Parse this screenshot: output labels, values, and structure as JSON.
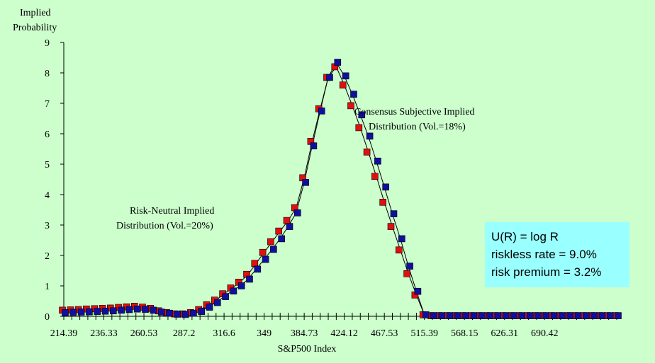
{
  "chart_data": {
    "type": "line",
    "ylabel": [
      "Implied",
      "Probability"
    ],
    "xlabel": "S&P500 Index",
    "ylim": [
      0,
      9
    ],
    "yticks": [
      0,
      1,
      2,
      3,
      4,
      5,
      6,
      7,
      8,
      9
    ],
    "xtick_labels": [
      "214.39",
      "236.33",
      "260.53",
      "287.2",
      "316.6",
      "349",
      "384.73",
      "424.12",
      "467.53",
      "515.39",
      "568.15",
      "626.31",
      "690.42"
    ],
    "xtick_label_index": [
      0,
      5,
      10,
      15,
      20,
      25,
      30,
      35,
      40,
      45,
      50,
      55,
      60
    ],
    "grid": false,
    "annotations": {
      "risk_neutral": [
        "Risk-Neutral Implied",
        "Distribution (Vol.=20%)"
      ],
      "subjective": [
        "Consensus Subjective Implied",
        "Distribution (Vol.=18%)"
      ]
    },
    "info_box": [
      "U(R) = log R",
      "riskless rate = 9.0%",
      "risk premium = 3.2%"
    ],
    "series": [
      {
        "label": "Risk-Neutral Implied Distribution (Vol.=20%)",
        "color": "#e01010",
        "values": [
          0.2,
          0.21,
          0.22,
          0.24,
          0.25,
          0.26,
          0.27,
          0.29,
          0.31,
          0.33,
          0.3,
          0.26,
          0.18,
          0.12,
          0.08,
          0.08,
          0.12,
          0.22,
          0.38,
          0.53,
          0.74,
          0.93,
          1.12,
          1.38,
          1.74,
          2.1,
          2.45,
          2.8,
          3.15,
          3.57,
          4.55,
          5.75,
          6.82,
          7.85,
          8.2,
          7.6,
          6.92,
          6.2,
          5.4,
          4.6,
          3.75,
          2.95,
          2.18,
          1.4,
          0.7,
          0.05,
          0.02,
          0.02,
          0.02,
          0.02,
          0.02,
          0.02,
          0.02,
          0.02,
          0.02,
          0.02,
          0.02,
          0.02,
          0.02,
          0.02,
          0.02,
          0.02,
          0.02,
          0.02,
          0.02,
          0.02,
          0.02,
          0.02,
          0.02,
          0.02
        ]
      },
      {
        "label": "Consensus Subjective Implied Distribution (Vol.=18%)",
        "color": "#1010a0",
        "values": [
          0.12,
          0.13,
          0.14,
          0.15,
          0.16,
          0.17,
          0.18,
          0.2,
          0.22,
          0.24,
          0.23,
          0.2,
          0.14,
          0.1,
          0.07,
          0.06,
          0.1,
          0.16,
          0.3,
          0.45,
          0.65,
          0.83,
          1.0,
          1.22,
          1.55,
          1.87,
          2.2,
          2.55,
          2.95,
          3.4,
          4.4,
          5.6,
          6.75,
          7.85,
          8.35,
          7.9,
          7.3,
          6.62,
          5.92,
          5.1,
          4.25,
          3.37,
          2.55,
          1.65,
          0.82,
          0.05,
          0.02,
          0.02,
          0.02,
          0.02,
          0.02,
          0.02,
          0.02,
          0.02,
          0.02,
          0.02,
          0.02,
          0.02,
          0.02,
          0.02,
          0.02,
          0.02,
          0.02,
          0.02,
          0.02,
          0.02,
          0.02,
          0.02,
          0.02,
          0.02
        ]
      }
    ]
  },
  "colors": {
    "background": "#ccffcc",
    "box": "#99ffff",
    "axis": "#000000",
    "line": "#000000",
    "red_marker": "#e01010",
    "blue_marker": "#1010a0"
  }
}
